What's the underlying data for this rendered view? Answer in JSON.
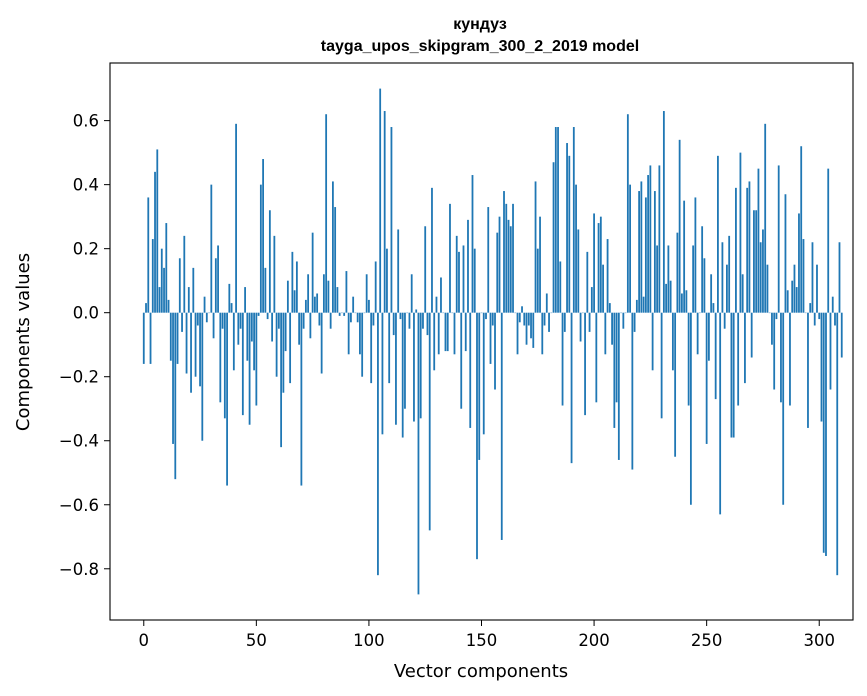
{
  "chart_data": {
    "type": "bar",
    "title": "кундуз",
    "subtitle": "tayga_upos_skipgram_300_2_2019 model",
    "xlabel": "Vector components",
    "ylabel": "Components values",
    "xlim": [
      -15,
      315
    ],
    "ylim": [
      -0.96,
      0.78
    ],
    "xticks": [
      0,
      50,
      100,
      150,
      200,
      250,
      300
    ],
    "yticks": [
      -0.8,
      -0.6,
      -0.4,
      -0.2,
      0.0,
      0.2,
      0.4,
      0.6
    ],
    "ytick_labels": [
      "−0.8",
      "−0.6",
      "−0.4",
      "−0.2",
      "0.0",
      "0.2",
      "0.4",
      "0.6"
    ],
    "series_color": "#1f77b4",
    "values": [
      -0.16,
      0.03,
      0.36,
      -0.16,
      0.23,
      0.44,
      0.51,
      0.08,
      0.2,
      0.14,
      0.28,
      0.04,
      -0.15,
      -0.41,
      -0.52,
      -0.16,
      0.17,
      -0.06,
      0.24,
      -0.19,
      0.08,
      -0.25,
      0.14,
      -0.2,
      -0.04,
      -0.23,
      -0.4,
      0.05,
      -0.03,
      0.0,
      0.4,
      -0.08,
      0.17,
      0.21,
      -0.28,
      -0.05,
      -0.33,
      -0.54,
      0.09,
      0.03,
      -0.18,
      0.59,
      -0.1,
      -0.05,
      -0.32,
      0.08,
      -0.15,
      -0.35,
      -0.09,
      -0.18,
      -0.29,
      -0.01,
      0.4,
      0.48,
      0.14,
      -0.02,
      0.32,
      -0.09,
      0.24,
      -0.2,
      -0.05,
      -0.42,
      -0.25,
      -0.12,
      0.1,
      -0.22,
      0.19,
      0.07,
      0.16,
      -0.1,
      -0.54,
      -0.05,
      0.04,
      0.12,
      -0.08,
      0.25,
      0.05,
      0.06,
      -0.04,
      -0.19,
      0.12,
      0.62,
      0.1,
      -0.05,
      0.41,
      0.33,
      0.08,
      -0.01,
      0.0,
      -0.01,
      0.13,
      -0.13,
      -0.03,
      0.05,
      0.0,
      -0.03,
      -0.13,
      -0.2,
      0.0,
      0.12,
      0.04,
      -0.22,
      -0.04,
      0.16,
      -0.82,
      0.7,
      -0.38,
      0.63,
      0.2,
      -0.22,
      0.58,
      -0.07,
      -0.35,
      0.26,
      -0.02,
      -0.39,
      -0.3,
      0.0,
      -0.05,
      0.12,
      -0.34,
      0.01,
      -0.88,
      -0.33,
      -0.05,
      0.27,
      -0.07,
      -0.68,
      0.39,
      -0.18,
      0.05,
      -0.13,
      0.11,
      0.0,
      -0.12,
      -0.12,
      0.34,
      0.0,
      -0.13,
      0.24,
      0.19,
      -0.3,
      0.21,
      -0.12,
      0.29,
      -0.36,
      0.43,
      0.2,
      -0.77,
      -0.46,
      0.0,
      -0.38,
      -0.02,
      0.33,
      -0.16,
      -0.04,
      -0.24,
      0.25,
      0.3,
      -0.71,
      0.38,
      0.34,
      0.29,
      0.27,
      0.34,
      0.0,
      -0.13,
      -0.03,
      0.02,
      -0.04,
      -0.1,
      -0.04,
      -0.08,
      -0.11,
      0.41,
      0.2,
      0.3,
      -0.13,
      -0.04,
      0.06,
      -0.06,
      0.0,
      0.47,
      0.58,
      0.58,
      0.16,
      -0.29,
      -0.06,
      0.53,
      0.49,
      -0.47,
      0.58,
      0.4,
      0.26,
      -0.09,
      0.0,
      -0.32,
      0.19,
      -0.06,
      0.08,
      0.31,
      -0.28,
      0.28,
      0.3,
      0.15,
      -0.13,
      0.23,
      0.03,
      -0.1,
      -0.36,
      -0.28,
      -0.46,
      0.0,
      -0.05,
      0.0,
      0.62,
      0.4,
      -0.49,
      -0.06,
      0.04,
      0.38,
      0.41,
      0.05,
      0.36,
      0.43,
      0.46,
      -0.18,
      0.38,
      0.21,
      0.46,
      -0.33,
      0.63,
      0.09,
      0.21,
      0.1,
      -0.18,
      -0.45,
      0.25,
      0.54,
      0.06,
      0.35,
      0.07,
      -0.29,
      -0.6,
      0.21,
      0.36,
      -0.13,
      0.0,
      0.27,
      0.17,
      -0.41,
      -0.15,
      0.12,
      0.03,
      -0.27,
      0.49,
      -0.63,
      0.22,
      -0.05,
      0.15,
      0.24,
      -0.39,
      -0.39,
      0.39,
      -0.29,
      0.5,
      0.12,
      -0.22,
      0.39,
      0.41,
      -0.14,
      0.32,
      0.32,
      0.45,
      0.22,
      0.26,
      0.59,
      0.15,
      0.0,
      -0.1,
      -0.24,
      -0.02,
      0.46,
      -0.28,
      -0.6,
      0.37,
      0.07,
      -0.29,
      0.1,
      0.15,
      0.08,
      0.31,
      0.52,
      0.23,
      0.0,
      -0.36,
      0.03,
      0.22,
      -0.04,
      0.15,
      -0.02,
      -0.34,
      -0.75,
      -0.76,
      0.45,
      -0.24,
      0.05,
      -0.04,
      -0.82,
      0.22,
      -0.14
    ]
  }
}
